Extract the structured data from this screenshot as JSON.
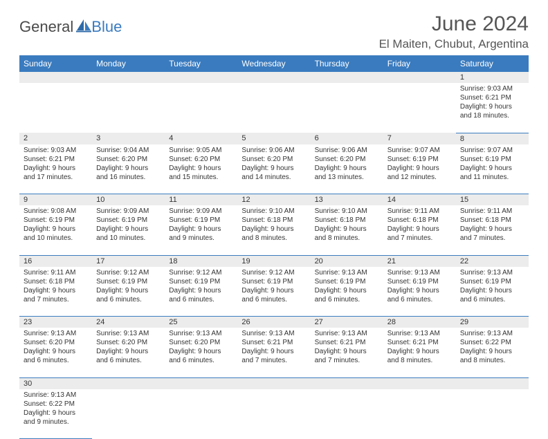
{
  "logo": {
    "text1": "General",
    "text2": "Blue"
  },
  "title": "June 2024",
  "location": "El Maiten, Chubut, Argentina",
  "colors": {
    "header_bg": "#3a7bbf",
    "header_text": "#ffffff",
    "daynum_bg": "#ececec",
    "row_divider": "#3a7bbf",
    "title_color": "#555555",
    "logo_gray": "#4a4a4a",
    "logo_blue": "#3a7bbf"
  },
  "day_headers": [
    "Sunday",
    "Monday",
    "Tuesday",
    "Wednesday",
    "Thursday",
    "Friday",
    "Saturday"
  ],
  "weeks": [
    [
      null,
      null,
      null,
      null,
      null,
      null,
      {
        "n": "1",
        "sr": "9:03 AM",
        "ss": "6:21 PM",
        "dl": "9 hours and 18 minutes."
      }
    ],
    [
      {
        "n": "2",
        "sr": "9:03 AM",
        "ss": "6:21 PM",
        "dl": "9 hours and 17 minutes."
      },
      {
        "n": "3",
        "sr": "9:04 AM",
        "ss": "6:20 PM",
        "dl": "9 hours and 16 minutes."
      },
      {
        "n": "4",
        "sr": "9:05 AM",
        "ss": "6:20 PM",
        "dl": "9 hours and 15 minutes."
      },
      {
        "n": "5",
        "sr": "9:06 AM",
        "ss": "6:20 PM",
        "dl": "9 hours and 14 minutes."
      },
      {
        "n": "6",
        "sr": "9:06 AM",
        "ss": "6:20 PM",
        "dl": "9 hours and 13 minutes."
      },
      {
        "n": "7",
        "sr": "9:07 AM",
        "ss": "6:19 PM",
        "dl": "9 hours and 12 minutes."
      },
      {
        "n": "8",
        "sr": "9:07 AM",
        "ss": "6:19 PM",
        "dl": "9 hours and 11 minutes."
      }
    ],
    [
      {
        "n": "9",
        "sr": "9:08 AM",
        "ss": "6:19 PM",
        "dl": "9 hours and 10 minutes."
      },
      {
        "n": "10",
        "sr": "9:09 AM",
        "ss": "6:19 PM",
        "dl": "9 hours and 10 minutes."
      },
      {
        "n": "11",
        "sr": "9:09 AM",
        "ss": "6:19 PM",
        "dl": "9 hours and 9 minutes."
      },
      {
        "n": "12",
        "sr": "9:10 AM",
        "ss": "6:18 PM",
        "dl": "9 hours and 8 minutes."
      },
      {
        "n": "13",
        "sr": "9:10 AM",
        "ss": "6:18 PM",
        "dl": "9 hours and 8 minutes."
      },
      {
        "n": "14",
        "sr": "9:11 AM",
        "ss": "6:18 PM",
        "dl": "9 hours and 7 minutes."
      },
      {
        "n": "15",
        "sr": "9:11 AM",
        "ss": "6:18 PM",
        "dl": "9 hours and 7 minutes."
      }
    ],
    [
      {
        "n": "16",
        "sr": "9:11 AM",
        "ss": "6:18 PM",
        "dl": "9 hours and 7 minutes."
      },
      {
        "n": "17",
        "sr": "9:12 AM",
        "ss": "6:19 PM",
        "dl": "9 hours and 6 minutes."
      },
      {
        "n": "18",
        "sr": "9:12 AM",
        "ss": "6:19 PM",
        "dl": "9 hours and 6 minutes."
      },
      {
        "n": "19",
        "sr": "9:12 AM",
        "ss": "6:19 PM",
        "dl": "9 hours and 6 minutes."
      },
      {
        "n": "20",
        "sr": "9:13 AM",
        "ss": "6:19 PM",
        "dl": "9 hours and 6 minutes."
      },
      {
        "n": "21",
        "sr": "9:13 AM",
        "ss": "6:19 PM",
        "dl": "9 hours and 6 minutes."
      },
      {
        "n": "22",
        "sr": "9:13 AM",
        "ss": "6:19 PM",
        "dl": "9 hours and 6 minutes."
      }
    ],
    [
      {
        "n": "23",
        "sr": "9:13 AM",
        "ss": "6:20 PM",
        "dl": "9 hours and 6 minutes."
      },
      {
        "n": "24",
        "sr": "9:13 AM",
        "ss": "6:20 PM",
        "dl": "9 hours and 6 minutes."
      },
      {
        "n": "25",
        "sr": "9:13 AM",
        "ss": "6:20 PM",
        "dl": "9 hours and 6 minutes."
      },
      {
        "n": "26",
        "sr": "9:13 AM",
        "ss": "6:21 PM",
        "dl": "9 hours and 7 minutes."
      },
      {
        "n": "27",
        "sr": "9:13 AM",
        "ss": "6:21 PM",
        "dl": "9 hours and 7 minutes."
      },
      {
        "n": "28",
        "sr": "9:13 AM",
        "ss": "6:21 PM",
        "dl": "9 hours and 8 minutes."
      },
      {
        "n": "29",
        "sr": "9:13 AM",
        "ss": "6:22 PM",
        "dl": "9 hours and 8 minutes."
      }
    ],
    [
      {
        "n": "30",
        "sr": "9:13 AM",
        "ss": "6:22 PM",
        "dl": "9 hours and 9 minutes."
      },
      null,
      null,
      null,
      null,
      null,
      null
    ]
  ],
  "labels": {
    "sunrise": "Sunrise:",
    "sunset": "Sunset:",
    "daylight": "Daylight:"
  }
}
